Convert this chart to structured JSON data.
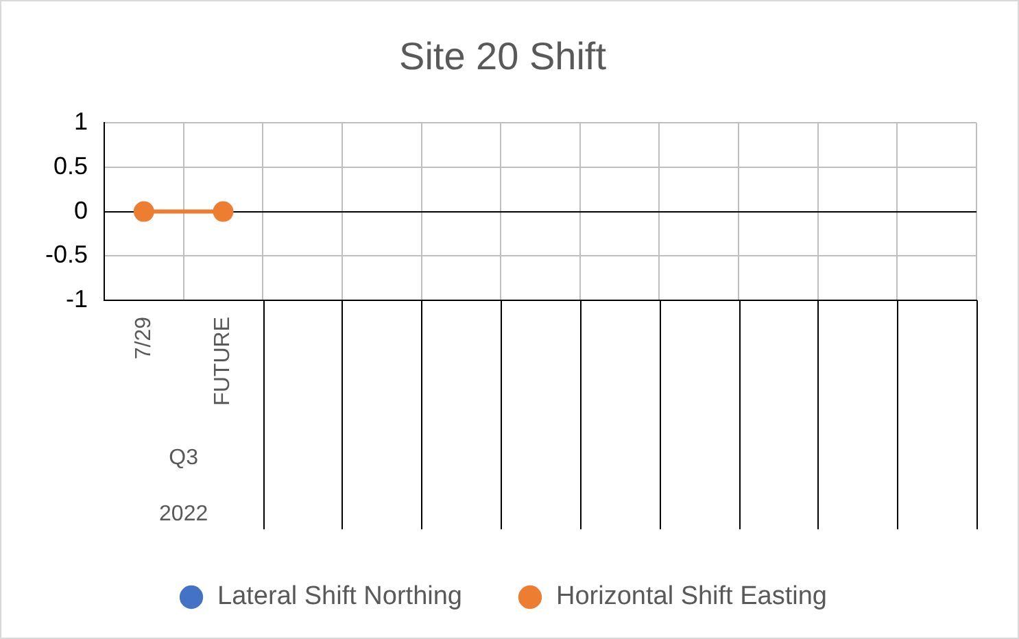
{
  "chart_data": {
    "type": "line",
    "title": "Site 20 Shift",
    "categories": [
      "7/29",
      "FUTURE",
      null,
      null,
      null,
      null,
      null,
      null,
      null,
      null,
      null
    ],
    "series": [
      {
        "name": "Lateral Shift Northing",
        "color": "#4472c4",
        "values": [
          null,
          null,
          null,
          null,
          null,
          null,
          null,
          null,
          null,
          null,
          null
        ]
      },
      {
        "name": "Horizontal Shift Easting",
        "color": "#ed7d31",
        "values": [
          0,
          0,
          null,
          null,
          null,
          null,
          null,
          null,
          null,
          null,
          null
        ]
      }
    ],
    "annotations": [
      "Q3",
      "2022"
    ],
    "ylim": [
      -1,
      1
    ],
    "yticks": [
      1,
      0.5,
      0,
      -0.5,
      -1
    ],
    "grid": true,
    "legend": "bottom",
    "marker": "circle",
    "line_style": "solid"
  }
}
